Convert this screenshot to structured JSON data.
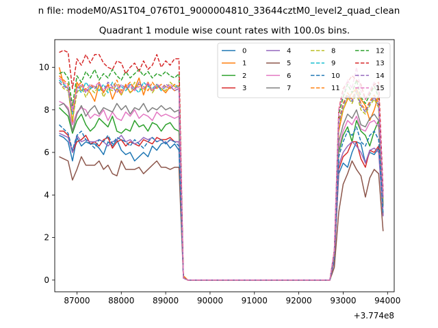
{
  "suptitle": "n file: modeM0/AS1T04_076T01_9000004810_33644cztM0_level2_quad_clean",
  "chart_data": {
    "type": "line",
    "title": "Quadrant 1 module wise count rates with 100.0s bins.",
    "xlabel": "",
    "ylabel": "",
    "x_offset_label": "+3.774e8",
    "xlim": [
      86500,
      94150
    ],
    "ylim": [
      -0.55,
      11.3
    ],
    "xticks": [
      87000,
      88000,
      89000,
      90000,
      91000,
      92000,
      93000,
      94000
    ],
    "yticks": [
      0,
      2,
      4,
      6,
      8,
      10
    ],
    "grid": false,
    "legend": {
      "placement": "top-right",
      "columns": 4
    },
    "x_block1": [
      86600,
      86700,
      86800,
      86900,
      87000,
      87100,
      87200,
      87300,
      87400,
      87500,
      87600,
      87700,
      87800,
      87900,
      88000,
      88100,
      88200,
      88300,
      88400,
      88500,
      88600,
      88700,
      88800,
      88900,
      89000,
      89100,
      89200,
      89300
    ],
    "x_drop": [
      89400,
      89500,
      89600
    ],
    "x_block2": [
      92700,
      92800,
      92900,
      93000,
      93100,
      93200,
      93300,
      93400,
      93500,
      93600,
      93700,
      93800,
      93900
    ],
    "x_flat_range": [
      89600,
      92700
    ],
    "series": [
      {
        "name": "0",
        "color": "#1f77b4",
        "dash": "solid",
        "block1": [
          6.8,
          6.7,
          6.5,
          5.6,
          6.7,
          6.3,
          6.5,
          6.4,
          6.4,
          6.2,
          5.9,
          6.5,
          6.3,
          6.6,
          6.1,
          5.9,
          6.0,
          5.6,
          5.8,
          6.0,
          5.8,
          6.3,
          6.1,
          6.4,
          6.5,
          6.2,
          6.4,
          6.1
        ],
        "drop": [
          0.15,
          0.0,
          0.0
        ],
        "block2": [
          0.0,
          1.0,
          5.0,
          5.5,
          5.3,
          6.0,
          6.5,
          6.4,
          5.5,
          6.0,
          5.9,
          6.2,
          3.0
        ]
      },
      {
        "name": "1",
        "color": "#ff7f0e",
        "dash": "solid",
        "block1": [
          10.0,
          9.2,
          9.0,
          7.4,
          9.3,
          8.9,
          9.0,
          8.8,
          8.4,
          9.2,
          8.8,
          9.2,
          8.5,
          9.0,
          8.7,
          9.2,
          8.8,
          9.0,
          9.5,
          8.7,
          9.3,
          8.9,
          9.2,
          9.0,
          8.8,
          9.1,
          8.9,
          9.0
        ],
        "drop": [
          0.2,
          0.0,
          0.0
        ],
        "block2": [
          0.0,
          1.3,
          7.0,
          8.0,
          8.5,
          8.8,
          9.0,
          8.5,
          8.2,
          7.5,
          8.0,
          8.7,
          3.5
        ]
      },
      {
        "name": "2",
        "color": "#2ca02c",
        "dash": "solid",
        "block1": [
          8.1,
          7.9,
          7.7,
          6.9,
          7.5,
          7.8,
          7.3,
          7.0,
          7.2,
          7.6,
          7.4,
          7.2,
          7.7,
          7.0,
          6.9,
          7.1,
          7.0,
          7.5,
          7.2,
          7.3,
          7.0,
          7.4,
          7.3,
          7.0,
          7.3,
          7.4,
          7.1,
          7.0
        ],
        "drop": [
          0.1,
          0.0,
          0.0
        ],
        "block2": [
          0.0,
          0.9,
          6.0,
          6.8,
          7.2,
          6.5,
          7.5,
          7.0,
          6.8,
          6.3,
          7.0,
          7.5,
          3.5
        ]
      },
      {
        "name": "3",
        "color": "#d62728",
        "dash": "solid",
        "block1": [
          7.0,
          7.0,
          6.8,
          6.0,
          6.5,
          6.6,
          6.8,
          6.4,
          6.5,
          6.3,
          6.6,
          6.7,
          6.2,
          6.5,
          6.6,
          6.3,
          6.5,
          6.4,
          6.3,
          6.6,
          6.5,
          6.4,
          6.7,
          6.6,
          6.6,
          6.7,
          6.5,
          6.5
        ],
        "drop": [
          0.1,
          0.0,
          0.0
        ],
        "block2": [
          0.0,
          0.9,
          5.2,
          5.8,
          6.0,
          6.5,
          6.5,
          5.7,
          5.3,
          6.1,
          6.0,
          6.3,
          3.0
        ]
      },
      {
        "name": "4",
        "color": "#9467bd",
        "dash": "solid",
        "block1": [
          6.9,
          6.8,
          6.7,
          6.0,
          6.8,
          6.5,
          6.6,
          6.5,
          6.5,
          6.6,
          6.5,
          6.3,
          6.5,
          6.6,
          6.8,
          6.5,
          6.6,
          6.4,
          6.5,
          6.7,
          6.6,
          6.7,
          6.5,
          6.6,
          6.4,
          6.6,
          6.5,
          6.5
        ],
        "drop": [
          0.1,
          0.0,
          0.0
        ],
        "block2": [
          0.0,
          0.9,
          5.4,
          6.0,
          6.3,
          6.5,
          6.3,
          6.0,
          5.5,
          6.1,
          6.2,
          6.0,
          3.0
        ]
      },
      {
        "name": "5",
        "color": "#8c564b",
        "dash": "solid",
        "block1": [
          5.8,
          5.7,
          5.6,
          4.7,
          5.2,
          5.8,
          5.4,
          5.4,
          5.4,
          5.6,
          5.2,
          5.4,
          5.0,
          4.9,
          5.6,
          5.2,
          5.2,
          5.2,
          5.3,
          5.0,
          5.2,
          5.4,
          5.6,
          5.3,
          5.3,
          5.2,
          5.3,
          5.3
        ],
        "drop": [
          0.1,
          0.0,
          0.0
        ],
        "block2": [
          0.0,
          0.6,
          3.2,
          4.5,
          5.0,
          5.6,
          5.2,
          4.9,
          3.9,
          4.8,
          5.2,
          5.0,
          2.3
        ]
      },
      {
        "name": "6",
        "color": "#e377c2",
        "dash": "solid",
        "block1": [
          8.4,
          8.3,
          8.1,
          7.3,
          7.9,
          8.1,
          8.0,
          7.6,
          7.8,
          7.7,
          8.0,
          7.5,
          7.9,
          7.6,
          7.5,
          7.9,
          7.7,
          8.0,
          7.6,
          7.8,
          7.7,
          7.5,
          7.9,
          7.7,
          7.8,
          7.7,
          7.6,
          7.7
        ],
        "drop": [
          0.1,
          0.0,
          0.0
        ],
        "block2": [
          0.0,
          1.0,
          6.2,
          7.0,
          7.5,
          7.3,
          7.7,
          7.1,
          7.0,
          7.4,
          7.5,
          7.2,
          3.4
        ]
      },
      {
        "name": "7",
        "color": "#7f7f7f",
        "dash": "solid",
        "block1": [
          8.2,
          8.3,
          8.0,
          7.0,
          7.8,
          8.2,
          7.7,
          8.0,
          8.2,
          7.8,
          8.1,
          8.0,
          7.9,
          8.3,
          8.0,
          8.2,
          7.8,
          8.1,
          8.0,
          8.3,
          7.9,
          8.1,
          8.0,
          8.2,
          8.0,
          8.1,
          7.9,
          8.0
        ],
        "drop": [
          0.1,
          0.0,
          0.0
        ],
        "block2": [
          0.0,
          1.0,
          6.5,
          7.3,
          7.8,
          7.6,
          8.0,
          7.3,
          7.2,
          7.6,
          7.8,
          7.5,
          3.5
        ]
      },
      {
        "name": "8",
        "color": "#bcbd22",
        "dash": "dashed",
        "block1": [
          9.3,
          9.0,
          8.9,
          7.5,
          8.8,
          9.1,
          8.6,
          9.0,
          8.8,
          9.2,
          8.6,
          9.0,
          8.9,
          9.2,
          8.7,
          9.1,
          8.8,
          9.3,
          9.0,
          8.9,
          9.2,
          8.8,
          9.1,
          9.0,
          8.9,
          9.3,
          9.1,
          9.0
        ],
        "drop": [
          0.1,
          0.0,
          0.0
        ],
        "block2": [
          0.0,
          1.2,
          7.3,
          8.0,
          8.6,
          8.3,
          8.8,
          8.0,
          7.8,
          8.2,
          8.5,
          8.1,
          3.8
        ]
      },
      {
        "name": "9",
        "color": "#17becf",
        "dash": "dashed",
        "block1": [
          9.4,
          9.2,
          9.0,
          7.8,
          9.1,
          8.8,
          9.3,
          9.0,
          9.1,
          8.9,
          9.2,
          8.8,
          9.3,
          9.0,
          9.1,
          8.9,
          9.2,
          9.0,
          8.8,
          9.3,
          9.1,
          9.0,
          9.2,
          8.9,
          9.1,
          9.0,
          9.2,
          9.0
        ],
        "drop": [
          0.1,
          0.0,
          0.0
        ],
        "block2": [
          0.0,
          1.2,
          7.4,
          8.2,
          8.7,
          8.4,
          8.9,
          8.2,
          7.9,
          8.3,
          8.6,
          8.2,
          3.8
        ]
      },
      {
        "name": "10",
        "color": "#1f77b4",
        "dash": "dashed",
        "block1": [
          7.3,
          7.1,
          6.9,
          6.1,
          6.8,
          7.0,
          6.6,
          6.4,
          6.2,
          6.6,
          6.5,
          6.8,
          6.4,
          6.7,
          6.6,
          6.5,
          6.3,
          6.6,
          6.4,
          6.2,
          6.5,
          6.7,
          6.5,
          6.6,
          6.4,
          6.6,
          6.5,
          6.3
        ],
        "drop": [
          0.1,
          0.0,
          0.0
        ],
        "block2": [
          0.0,
          1.0,
          5.8,
          6.5,
          7.0,
          6.8,
          7.2,
          6.5,
          6.3,
          6.8,
          7.0,
          6.6,
          3.1
        ]
      },
      {
        "name": "11",
        "color": "#ff7f0e",
        "dash": "dashed",
        "block1": [
          9.6,
          9.4,
          9.2,
          8.0,
          9.1,
          9.3,
          8.9,
          9.2,
          9.0,
          9.3,
          8.8,
          9.2,
          9.0,
          9.4,
          8.9,
          9.1,
          9.3,
          9.0,
          9.2,
          9.1,
          8.9,
          9.3,
          9.0,
          9.2,
          9.1,
          9.0,
          9.2,
          9.1
        ],
        "drop": [
          0.1,
          0.0,
          0.0
        ],
        "block2": [
          0.0,
          1.2,
          7.5,
          8.3,
          8.8,
          8.5,
          9.0,
          8.3,
          8.0,
          8.4,
          8.7,
          8.3,
          3.9
        ]
      },
      {
        "name": "12",
        "color": "#2ca02c",
        "dash": "dashed",
        "block1": [
          9.7,
          9.8,
          9.5,
          8.2,
          9.6,
          9.3,
          9.8,
          9.5,
          9.9,
          9.4,
          9.7,
          9.5,
          9.9,
          9.6,
          9.4,
          9.8,
          9.5,
          9.7,
          9.9,
          9.6,
          9.8,
          9.5,
          9.7,
          9.6,
          9.8,
          9.6,
          9.5,
          9.7
        ],
        "drop": [
          0.1,
          0.0,
          0.0
        ],
        "block2": [
          0.0,
          1.3,
          7.8,
          8.6,
          9.2,
          8.8,
          9.4,
          8.6,
          8.3,
          8.7,
          9.1,
          8.6,
          4.0
        ]
      },
      {
        "name": "13",
        "color": "#d62728",
        "dash": "dashed",
        "block1": [
          10.7,
          10.8,
          10.7,
          9.0,
          10.4,
          10.1,
          10.6,
          10.2,
          10.6,
          10.6,
          10.2,
          10.0,
          9.9,
          10.3,
          10.2,
          9.7,
          10.0,
          10.2,
          9.8,
          10.3,
          9.9,
          10.1,
          10.6,
          10.0,
          10.3,
          10.1,
          10.4,
          10.4
        ],
        "drop": [
          0.1,
          0.0,
          0.0
        ],
        "block2": [
          0.0,
          1.4,
          8.0,
          9.0,
          9.3,
          9.6,
          9.4,
          9.2,
          8.5,
          8.8,
          9.2,
          9.3,
          4.2
        ]
      },
      {
        "name": "14",
        "color": "#9467bd",
        "dash": "dashed",
        "block1": [
          9.3,
          9.1,
          9.0,
          7.9,
          8.9,
          9.2,
          8.8,
          9.1,
          9.0,
          9.2,
          8.9,
          9.3,
          9.1,
          8.8,
          9.2,
          9.0,
          9.1,
          8.9,
          9.3,
          9.0,
          9.2,
          8.9,
          9.1,
          9.0,
          9.2,
          9.1,
          8.9,
          9.0
        ],
        "drop": [
          0.1,
          0.0,
          0.0
        ],
        "block2": [
          0.0,
          1.2,
          7.4,
          8.2,
          8.7,
          8.4,
          8.9,
          8.2,
          7.9,
          8.3,
          8.6,
          8.2,
          3.8
        ]
      },
      {
        "name": "15",
        "color": "#e377c2",
        "dash": "dashed",
        "block1": [
          9.5,
          9.3,
          9.1,
          8.0,
          9.0,
          9.2,
          8.9,
          9.2,
          9.1,
          9.3,
          8.9,
          9.1,
          9.0,
          9.2,
          8.8,
          9.1,
          9.2,
          8.9,
          9.1,
          9.0,
          9.3,
          8.9,
          9.2,
          9.1,
          9.0,
          9.2,
          9.0,
          9.1
        ],
        "drop": [
          0.1,
          0.0,
          0.0
        ],
        "block2": [
          0.0,
          1.4,
          8.0,
          8.8,
          9.4,
          9.0,
          10.0,
          8.9,
          8.5,
          8.9,
          9.3,
          8.8,
          4.0
        ]
      }
    ]
  }
}
